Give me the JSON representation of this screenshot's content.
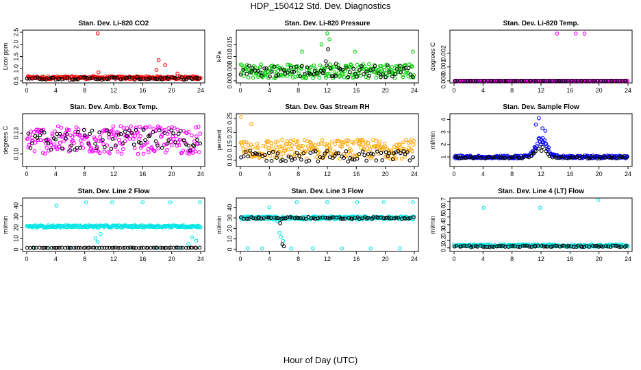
{
  "page": {
    "title": "HDP_150412  Std. Dev. Diagnostics",
    "x_title": "Hour of Day (UTC)"
  },
  "chart_data": [
    {
      "type": "scatter",
      "title": "Stan. Dev. Li-820 CO2",
      "ylabel": "Licor ppm",
      "xlim": [
        0,
        24
      ],
      "ylim": [
        0.5,
        2.5
      ],
      "x_ticks": [
        0,
        4,
        8,
        12,
        16,
        20,
        24
      ],
      "y_ticks": [
        0.5,
        1.0,
        1.5,
        2.0,
        2.5
      ],
      "y_tick_labels": [
        "0.5",
        "1.0",
        "1.5",
        "2.0",
        "2.5"
      ],
      "grid": false,
      "series": [
        {
          "color": "#ff0000",
          "base": 0.63,
          "spread": 0.06,
          "extra_points": [
            [
              9.8,
              2.45
            ],
            [
              18.2,
              1.35
            ],
            [
              19.1,
              1.15
            ],
            [
              17.9,
              0.95
            ],
            [
              9.9,
              0.85
            ],
            [
              20.8,
              0.8
            ]
          ]
        },
        {
          "color": "#000000",
          "base": 0.6,
          "spread": 0.05,
          "extra_points": []
        }
      ]
    },
    {
      "type": "scatter",
      "title": "Stan. Dev. Li-820 Pressure",
      "ylabel": "kPa",
      "xlim": [
        0,
        24
      ],
      "ylim": [
        0,
        0.02
      ],
      "x_ticks": [
        0,
        4,
        8,
        12,
        16,
        20,
        24
      ],
      "y_ticks": [
        0.0,
        0.005,
        0.01,
        0.015
      ],
      "y_tick_labels": [
        "0.000",
        "0.005",
        "0.010",
        "0.015"
      ],
      "grid": false,
      "series": [
        {
          "color": "#00cc00",
          "base": 0.004,
          "spread": 0.003,
          "extra_points": [
            [
              12.0,
              0.0195
            ],
            [
              23.8,
              0.012
            ],
            [
              8.5,
              0.012
            ],
            [
              11.2,
              0.015
            ],
            [
              12.3,
              0.017
            ],
            [
              15.8,
              0.012
            ]
          ]
        },
        {
          "color": "#000000",
          "base": 0.004,
          "spread": 0.0025,
          "extra_points": [
            [
              12.1,
              0.013
            ],
            [
              11.8,
              0.008
            ],
            [
              13.2,
              0.007
            ]
          ]
        }
      ]
    },
    {
      "type": "scatter",
      "title": "Stan. Dev. Li-820 Temp.",
      "ylabel": "degrees C",
      "xlim": [
        0,
        24
      ],
      "ylim": [
        0,
        0.0035
      ],
      "x_ticks": [
        0,
        4,
        8,
        12,
        16,
        20,
        24
      ],
      "y_ticks": [
        0.0,
        0.001,
        0.002
      ],
      "y_tick_labels": [
        "0.000",
        "0.001",
        "0.002"
      ],
      "grid": false,
      "series": [
        {
          "color": "#ff00ff",
          "base": 0.0,
          "spread": 0.0,
          "extra_points": [
            [
              14.2,
              0.0034
            ],
            [
              16.8,
              0.0034
            ],
            [
              18.0,
              0.0034
            ]
          ]
        },
        {
          "color": "#000000",
          "base": 0.0,
          "spread": 0.0,
          "extra_points": []
        }
      ]
    },
    {
      "type": "scatter",
      "title": "Stan. Dev. Amb. Box Temp.",
      "ylabel": "degrees C",
      "xlim": [
        0,
        24
      ],
      "ylim": [
        0.085,
        0.155
      ],
      "x_ticks": [
        0,
        4,
        8,
        12,
        16,
        20,
        24
      ],
      "y_ticks": [
        0.1,
        0.13
      ],
      "y_tick_labels": [
        "0.10",
        "0.13"
      ],
      "grid": false,
      "series": [
        {
          "color": "#ff00ff",
          "base": 0.12,
          "spread": 0.02,
          "extra_points": []
        },
        {
          "color": "#000000",
          "base": 0.12,
          "spread": 0.015,
          "extra_points": []
        }
      ]
    },
    {
      "type": "scatter",
      "title": "Stan. Dev. Gas Stream RH",
      "ylabel": "percent",
      "xlim": [
        0,
        24
      ],
      "ylim": [
        0.085,
        0.26
      ],
      "x_ticks": [
        0,
        4,
        8,
        12,
        16,
        20,
        24
      ],
      "y_ticks": [
        0.1,
        0.15,
        0.2,
        0.25
      ],
      "y_tick_labels": [
        "0.10",
        "0.15",
        "0.20",
        "0.25"
      ],
      "grid": false,
      "series": [
        {
          "color": "#ffa500",
          "base": 0.14,
          "spread": 0.035,
          "extra_points": [
            [
              0.1,
              0.255
            ],
            [
              1.5,
              0.23
            ]
          ]
        },
        {
          "color": "#000000",
          "base": 0.115,
          "spread": 0.02,
          "extra_points": []
        }
      ]
    },
    {
      "type": "scatter",
      "title": "Stan. Dev. Sample Flow",
      "ylabel": "ml/min",
      "xlim": [
        0,
        24
      ],
      "ylim": [
        0.4,
        4.3
      ],
      "x_ticks": [
        0,
        4,
        8,
        12,
        16,
        20,
        24
      ],
      "y_ticks": [
        1,
        2,
        3,
        4
      ],
      "y_tick_labels": [
        "1",
        "2",
        "3",
        "4"
      ],
      "grid": false,
      "series": [
        {
          "color": "#0000ff",
          "base": 1.0,
          "spread": 0.12,
          "peak": 2.6,
          "extra_points": [
            [
              11.7,
              4.1
            ],
            [
              11.3,
              3.6
            ],
            [
              12.2,
              3.3
            ],
            [
              12.6,
              3.1
            ]
          ]
        },
        {
          "color": "#000000",
          "base": 0.95,
          "spread": 0.08,
          "peak": 1.8,
          "extra_points": []
        }
      ]
    },
    {
      "type": "scatter",
      "title": "Stan. Dev. Line 2 Flow",
      "ylabel": "ml/min",
      "xlim": [
        0,
        24
      ],
      "ylim": [
        0,
        45
      ],
      "x_ticks": [
        0,
        4,
        8,
        12,
        16,
        20,
        24
      ],
      "y_ticks": [
        0,
        10,
        20,
        30,
        40
      ],
      "y_tick_labels": [
        "0",
        "10",
        "20",
        "30",
        "40"
      ],
      "grid": false,
      "series": [
        {
          "color": "#00e5e5",
          "base": 21,
          "spread": 1.0,
          "extra_points": [
            [
              4.1,
              40
            ],
            [
              8.2,
              43
            ],
            [
              11.8,
              43
            ],
            [
              16.0,
              43
            ],
            [
              19.8,
              43
            ],
            [
              23.9,
              43
            ],
            [
              9.5,
              10
            ],
            [
              9.8,
              7
            ],
            [
              10.2,
              14
            ],
            [
              22.3,
              5
            ],
            [
              22.8,
              11
            ],
            [
              23.4,
              8
            ],
            [
              1.0,
              1.2
            ],
            [
              3.0,
              1.2
            ],
            [
              6.0,
              1.2
            ],
            [
              10.0,
              1.2
            ],
            [
              14.0,
              1.2
            ],
            [
              18.0,
              1.2
            ],
            [
              21.0,
              1.2
            ]
          ]
        },
        {
          "color": "#000000",
          "base": 1.5,
          "spread": 0.2,
          "extra_points": []
        }
      ]
    },
    {
      "type": "scatter",
      "title": "Stan. Dev. Line 3 Flow",
      "ylabel": "ml/min",
      "xlim": [
        0,
        24
      ],
      "ylim": [
        0,
        47
      ],
      "x_ticks": [
        0,
        4,
        8,
        12,
        16,
        20,
        24
      ],
      "y_ticks": [
        0,
        10,
        20,
        30,
        40
      ],
      "y_tick_labels": [
        "0",
        "10",
        "20",
        "30",
        "40"
      ],
      "grid": false,
      "series": [
        {
          "color": "#00e5e5",
          "base": 30,
          "spread": 1.5,
          "extra_points": [
            [
              4.0,
              40
            ],
            [
              5.1,
              27
            ],
            [
              5.4,
              16
            ],
            [
              5.6,
              12
            ],
            [
              5.9,
              8
            ],
            [
              7.8,
              45
            ],
            [
              12.0,
              45
            ],
            [
              16.1,
              45
            ],
            [
              19.8,
              45
            ],
            [
              23.8,
              45
            ],
            [
              1.0,
              1
            ],
            [
              3.0,
              1
            ],
            [
              7.0,
              1
            ],
            [
              10.0,
              1
            ],
            [
              14.0,
              1
            ],
            [
              18.0,
              1
            ],
            [
              22.0,
              1
            ]
          ]
        },
        {
          "color": "#000000",
          "base": 30,
          "spread": 0.8,
          "extra_points": [
            [
              5.5,
              25
            ],
            [
              5.8,
              5
            ],
            [
              6.0,
              3
            ]
          ]
        }
      ]
    },
    {
      "type": "scatter",
      "title": "Stan. Dev. Line 4 (LT) Flow",
      "ylabel": "ml/min",
      "xlim": [
        0,
        24
      ],
      "ylim": [
        0.08,
        0.72
      ],
      "x_ticks": [
        0,
        4,
        8,
        12,
        16,
        20,
        24
      ],
      "y_ticks": [
        0.1,
        0.2,
        0.3,
        0.4,
        0.5,
        0.6,
        0.7
      ],
      "y_tick_labels": [
        "0.1",
        "0.2",
        "0.3",
        "0.4",
        "0.5",
        "0.6",
        "0.7"
      ],
      "grid": false,
      "series": [
        {
          "color": "#00e5e5",
          "base": 0.13,
          "spread": 0.015,
          "extra_points": [
            [
              4.1,
              0.62
            ],
            [
              11.9,
              0.62
            ],
            [
              19.9,
              0.72
            ]
          ]
        },
        {
          "color": "#000000",
          "base": 0.12,
          "spread": 0.01,
          "extra_points": []
        }
      ]
    }
  ]
}
